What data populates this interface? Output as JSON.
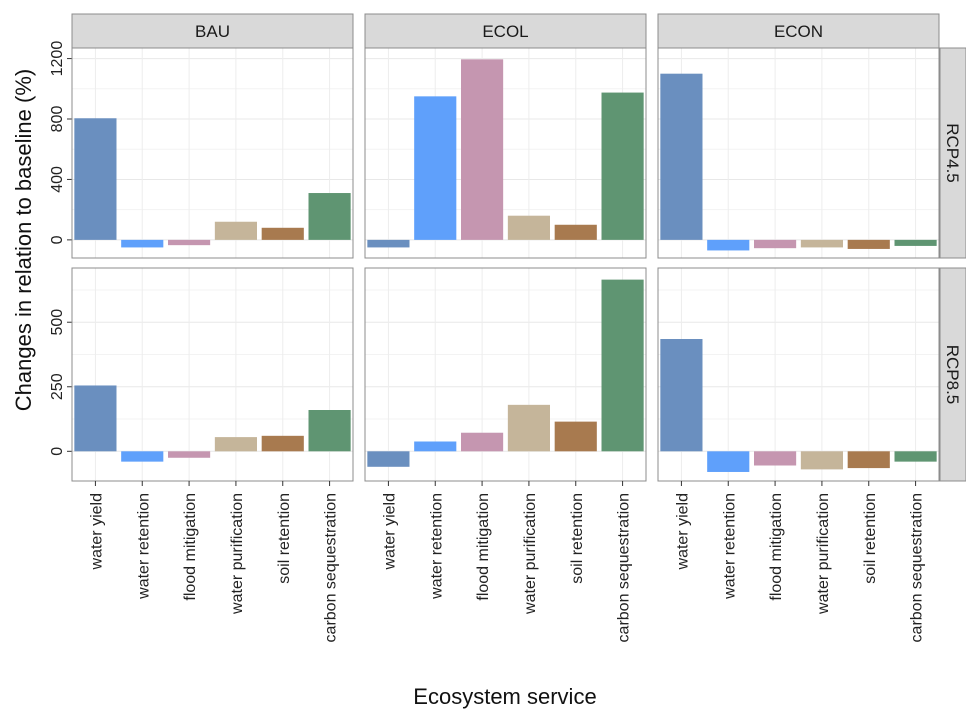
{
  "chart_data": {
    "type": "bar",
    "xlabel": "Ecosystem service",
    "ylabel": "Changes in relation to baseline (%)",
    "categories": [
      "water yield",
      "water retention",
      "flood mitigation",
      "water purification",
      "soil retention",
      "carbon sequestration"
    ],
    "colors": [
      "#6a8fbf",
      "#5fa0fb",
      "#c596b0",
      "#c5b59a",
      "#a87a4f",
      "#5f9572"
    ],
    "scenarios": [
      "BAU",
      "ECOL",
      "ECON"
    ],
    "rows": [
      {
        "label": "RCP4.5",
        "ylim": [
          -120,
          1270
        ],
        "yticks": [
          0,
          400,
          800,
          1200
        ],
        "panels": [
          {
            "scenario": "BAU",
            "values": [
              805,
              -50,
              -35,
              120,
              80,
              310
            ]
          },
          {
            "scenario": "ECOL",
            "values": [
              -50,
              950,
              1195,
              160,
              100,
              975
            ]
          },
          {
            "scenario": "ECON",
            "values": [
              1100,
              -70,
              -55,
              -50,
              -60,
              -40
            ]
          }
        ]
      },
      {
        "label": "RCP8.5",
        "ylim": [
          -115,
          710
        ],
        "yticks": [
          0,
          250,
          500
        ],
        "panels": [
          {
            "scenario": "BAU",
            "values": [
              255,
              -40,
              -25,
              55,
              60,
              160
            ]
          },
          {
            "scenario": "ECOL",
            "values": [
              -60,
              38,
              72,
              180,
              115,
              665
            ]
          },
          {
            "scenario": "ECON",
            "values": [
              435,
              -80,
              -55,
              -70,
              -65,
              -40
            ]
          }
        ]
      }
    ]
  }
}
